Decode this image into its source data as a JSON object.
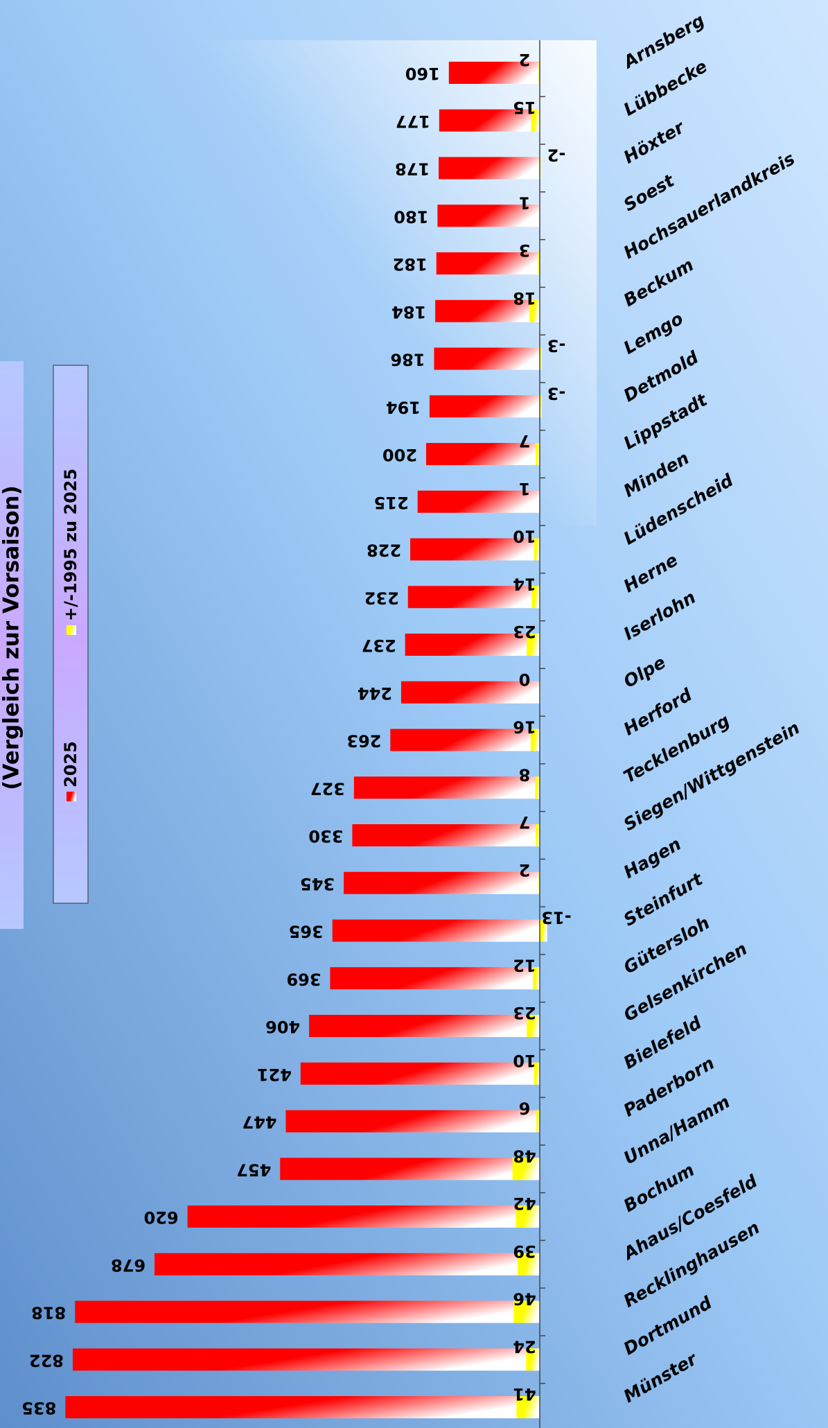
{
  "chart_data": {
    "type": "bar",
    "title": "(Vergleich zur Vorsaison)",
    "categories": [
      "Arnsberg",
      "Lübbecke",
      "Höxter",
      "Soest",
      "Hochsauerlandkreis",
      "Beckum",
      "Lemgo",
      "Detmold",
      "Lippstadt",
      "Minden",
      "Lüdenscheid",
      "Herne",
      "Iserlohn",
      "Olpe",
      "Herford",
      "Tecklenburg",
      "Siegen/Wittgenstein",
      "Hagen",
      "Steinfurt",
      "Gütersloh",
      "Gelsenkirchen",
      "Bielefeld",
      "Paderborn",
      "Unna/Hamm",
      "Bochum",
      "Ahaus/Coesfeld",
      "Recklinghausen",
      "Dortmund",
      "Münster"
    ],
    "series": [
      {
        "name": "2025",
        "color": "#ff0000",
        "values": [
          160,
          177,
          178,
          180,
          182,
          184,
          186,
          194,
          200,
          215,
          228,
          232,
          237,
          244,
          263,
          327,
          330,
          345,
          365,
          369,
          406,
          421,
          447,
          457,
          620,
          678,
          818,
          822,
          835
        ]
      },
      {
        "name": "+/-1995 zu 2025",
        "color": "#ffff00",
        "values": [
          2,
          15,
          -2,
          1,
          3,
          18,
          -3,
          -3,
          7,
          1,
          10,
          14,
          23,
          0,
          16,
          8,
          7,
          2,
          -13,
          12,
          23,
          10,
          6,
          48,
          42,
          39,
          46,
          24,
          41
        ]
      }
    ],
    "xlim": [
      0,
      950
    ]
  }
}
